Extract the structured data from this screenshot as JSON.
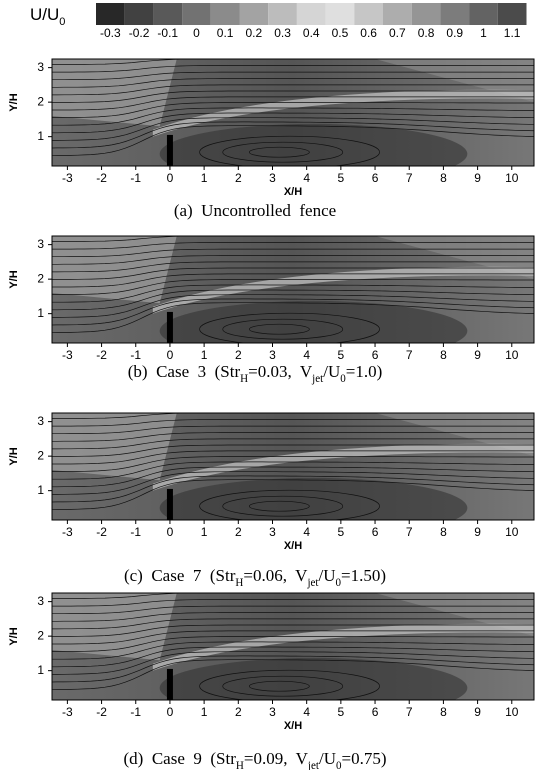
{
  "colorbar": {
    "label": [
      {
        "text": "U/U"
      },
      {
        "sub": "0"
      }
    ],
    "ticks": [
      -0.3,
      -0.2,
      -0.1,
      0,
      0.1,
      0.2,
      0.3,
      0.4,
      0.5,
      0.6,
      0.7,
      0.8,
      0.9,
      1,
      1.1
    ]
  },
  "panels": [
    {
      "ylabel": "Y/H",
      "xlabel": "X/H",
      "xticks": [
        -3,
        -2,
        -1,
        0,
        1,
        2,
        3,
        4,
        5,
        6,
        7,
        8,
        9,
        10
      ],
      "yticks": [
        1,
        2,
        3
      ],
      "xlim": [
        -3.45,
        10.65
      ],
      "ylim": [
        0.15,
        3.25
      ],
      "caption": [
        {
          "text": "(a)  Uncontrolled  fence"
        }
      ]
    },
    {
      "ylabel": "Y/H",
      "xticks": [
        -3,
        -2,
        -1,
        0,
        1,
        2,
        3,
        4,
        5,
        6,
        7,
        8,
        9,
        10
      ],
      "yticks": [
        1,
        2,
        3
      ],
      "xlim": [
        -3.45,
        10.65
      ],
      "ylim": [
        0.15,
        3.25
      ],
      "caption": [
        {
          "text": "(b)  Case  3  (Str"
        },
        {
          "sub": "H"
        },
        {
          "text": "=0.03,  V"
        },
        {
          "sub": "jet"
        },
        {
          "text": "/U"
        },
        {
          "sub": "0"
        },
        {
          "text": "=1.0)"
        }
      ]
    },
    {
      "ylabel": "Y/H",
      "xlabel": "X/H",
      "xticks": [
        -3,
        -2,
        -1,
        0,
        1,
        2,
        3,
        4,
        5,
        6,
        7,
        8,
        9,
        10
      ],
      "yticks": [
        1,
        2,
        3
      ],
      "xlim": [
        -3.45,
        10.65
      ],
      "ylim": [
        0.15,
        3.25
      ],
      "caption": [
        {
          "text": "(c)  Case  7  (Str"
        },
        {
          "sub": "H"
        },
        {
          "text": "=0.06,  V"
        },
        {
          "sub": "jet"
        },
        {
          "text": "/U"
        },
        {
          "sub": "0"
        },
        {
          "text": "=1.50)"
        }
      ]
    },
    {
      "ylabel": "Y/H",
      "xlabel": "X/H",
      "xticks": [
        -3,
        -2,
        -1,
        0,
        1,
        2,
        3,
        4,
        5,
        6,
        7,
        8,
        9,
        10
      ],
      "yticks": [
        1,
        2,
        3
      ],
      "xlim": [
        -3.45,
        10.65
      ],
      "ylim": [
        0.15,
        3.25
      ],
      "caption": [
        {
          "text": "(d)  Case  9  (Str"
        },
        {
          "sub": "H"
        },
        {
          "text": "=0.09,  V"
        },
        {
          "sub": "jet"
        },
        {
          "text": "/U"
        },
        {
          "sub": "0"
        },
        {
          "text": "=0.75)"
        }
      ]
    }
  ]
}
